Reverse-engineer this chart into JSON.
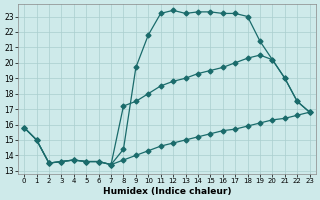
{
  "xlabel": "Humidex (Indice chaleur)",
  "bg_color": "#ceeaea",
  "grid_color": "#aacece",
  "line_color": "#1a6b6b",
  "xlim": [
    -0.5,
    23.5
  ],
  "ylim": [
    12.8,
    23.8
  ],
  "yticks": [
    13,
    14,
    15,
    16,
    17,
    18,
    19,
    20,
    21,
    22,
    23
  ],
  "xticks": [
    0,
    1,
    2,
    3,
    4,
    5,
    6,
    7,
    8,
    9,
    10,
    11,
    12,
    13,
    14,
    15,
    16,
    17,
    18,
    19,
    20,
    21,
    22,
    23
  ],
  "line1_x": [
    0,
    1,
    2,
    3,
    4,
    5,
    6,
    7,
    8,
    9,
    10,
    11,
    12,
    13,
    14,
    15,
    16,
    17,
    18,
    19,
    20,
    21,
    22,
    23
  ],
  "line1_y": [
    15.8,
    15.0,
    13.5,
    13.6,
    13.7,
    13.6,
    13.6,
    13.4,
    14.4,
    19.7,
    21.8,
    23.2,
    23.4,
    23.2,
    23.3,
    23.3,
    23.2,
    23.2,
    23.0,
    21.4,
    20.2,
    19.0,
    17.5,
    16.8
  ],
  "line2_x": [
    0,
    1,
    2,
    3,
    4,
    5,
    6,
    7,
    8,
    9,
    10,
    11,
    12,
    13,
    14,
    15,
    16,
    17,
    18,
    19,
    20,
    21,
    22,
    23
  ],
  "line2_y": [
    15.8,
    15.0,
    13.5,
    13.6,
    13.7,
    13.6,
    13.6,
    13.4,
    17.2,
    17.5,
    18.0,
    18.5,
    18.8,
    19.0,
    19.3,
    19.5,
    19.7,
    20.0,
    20.3,
    20.5,
    20.2,
    19.0,
    17.5,
    16.8
  ],
  "line3_x": [
    0,
    1,
    2,
    3,
    4,
    5,
    6,
    7,
    8,
    9,
    10,
    11,
    12,
    13,
    14,
    15,
    16,
    17,
    18,
    19,
    20,
    21,
    22,
    23
  ],
  "line3_y": [
    15.8,
    15.0,
    13.5,
    13.6,
    13.7,
    13.6,
    13.6,
    13.4,
    13.7,
    14.0,
    14.3,
    14.6,
    14.8,
    15.0,
    15.2,
    15.4,
    15.6,
    15.7,
    15.9,
    16.1,
    16.3,
    16.4,
    16.6,
    16.8
  ],
  "marker": "D",
  "marker_size": 2.5,
  "line_width": 0.9
}
